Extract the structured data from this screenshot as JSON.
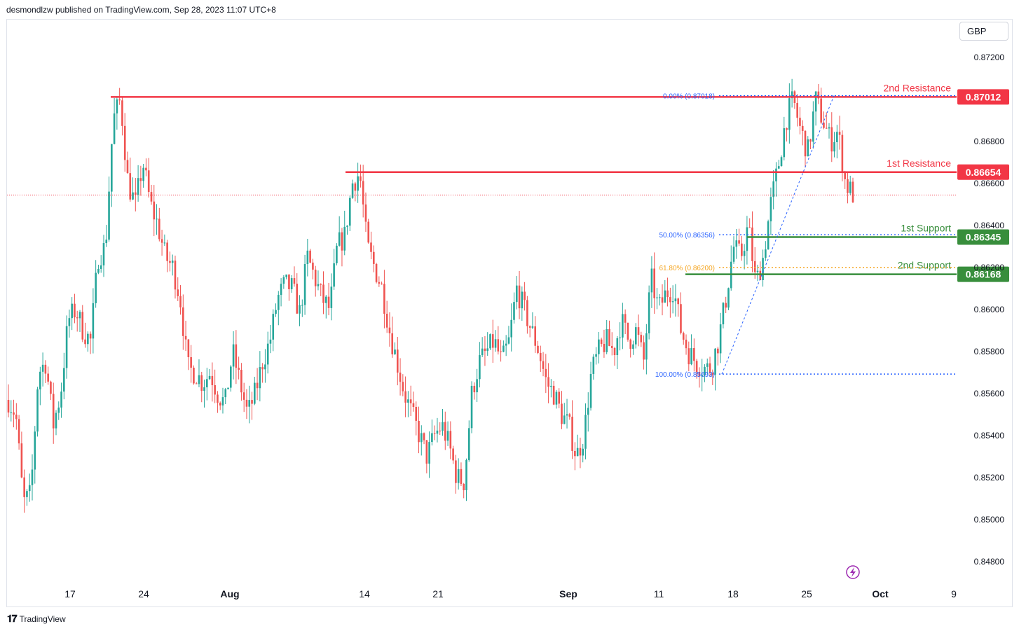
{
  "header": {
    "publisher_line": "desmondlzw published on TradingView.com, Sep 28, 2023 11:07 UTC+8"
  },
  "currency": "GBP",
  "footer": {
    "brand": "TradingView"
  },
  "colors": {
    "up": "#26a69a",
    "down": "#ef5350",
    "resistance": "#f23645",
    "support": "#388e3c",
    "fib": "#2962ff",
    "fib618": "#f5a623",
    "price_line": "#f23645"
  },
  "chart_data": {
    "type": "candlestick",
    "title": "",
    "y_axis": {
      "ticks": [
        0.872,
        0.868,
        0.866,
        0.864,
        0.862,
        0.86,
        0.858,
        0.856,
        0.854,
        0.852,
        0.85,
        0.848
      ],
      "tick_labels": [
        "0.87200",
        "0.86800",
        "0.86600",
        "0.86400",
        "0.86200",
        "0.86000",
        "0.85800",
        "0.85600",
        "0.85400",
        "0.85200",
        "0.85000",
        "0.84800"
      ],
      "range": [
        0.8469,
        0.8738
      ]
    },
    "x_axis": {
      "labels": [
        "17",
        "24",
        "Aug",
        "14",
        "21",
        "Sep",
        "11",
        "18",
        "25",
        "Oct",
        "9"
      ],
      "bold": [
        "Aug",
        "Sep",
        "Oct"
      ]
    },
    "levels": [
      {
        "name": "2nd Resistance",
        "value": 0.87012,
        "label": "0.87012",
        "kind": "resistance"
      },
      {
        "name": "1st Resistance",
        "value": 0.86654,
        "label": "0.86654",
        "kind": "resistance"
      },
      {
        "name": "1st Support",
        "value": 0.86345,
        "label": "0.86345",
        "kind": "support"
      },
      {
        "name": "2nd Support",
        "value": 0.86168,
        "label": "0.86168",
        "kind": "support"
      }
    ],
    "fibonacci": [
      {
        "label": "0.00% (0.87018)",
        "value": 0.87018
      },
      {
        "label": "50.00% (0.86356)",
        "value": 0.86356
      },
      {
        "label": "61.80% (0.86200)",
        "value": 0.862
      },
      {
        "label": "100.00% (0.85693)",
        "value": 0.85693
      }
    ],
    "current_price": 0.86545,
    "price_path": [
      [
        0.8557,
        0.855
      ],
      [
        0.8508,
        0.8512
      ],
      [
        0.857,
        0.8575
      ],
      [
        0.8545,
        0.856
      ],
      [
        0.8595,
        0.86
      ],
      [
        0.859,
        0.8585
      ],
      [
        0.8625,
        0.863
      ],
      [
        0.869,
        0.87
      ],
      [
        0.866,
        0.865
      ],
      [
        0.867,
        0.865
      ],
      [
        0.864,
        0.8625
      ],
      [
        0.862,
        0.8605
      ],
      [
        0.8572,
        0.857
      ],
      [
        0.8565,
        0.857
      ],
      [
        0.856,
        0.8555
      ],
      [
        0.858,
        0.8565
      ],
      [
        0.855,
        0.856
      ],
      [
        0.8575,
        0.8585
      ],
      [
        0.8605,
        0.8612
      ],
      [
        0.861,
        0.8598
      ],
      [
        0.8625,
        0.8615
      ],
      [
        0.8605,
        0.86
      ],
      [
        0.863,
        0.8635
      ],
      [
        0.866,
        0.8665
      ],
      [
        0.863,
        0.862
      ],
      [
        0.861,
        0.859
      ],
      [
        0.8575,
        0.856
      ],
      [
        0.855,
        0.854
      ],
      [
        0.853,
        0.854
      ],
      [
        0.8545,
        0.8535
      ],
      [
        0.852,
        0.8518
      ],
      [
        0.856,
        0.8575
      ],
      [
        0.858,
        0.8585
      ],
      [
        0.8575,
        0.8585
      ],
      [
        0.861,
        0.86
      ],
      [
        0.859,
        0.858
      ],
      [
        0.8565,
        0.856
      ],
      [
        0.855,
        0.8545
      ],
      [
        0.853,
        0.854
      ],
      [
        0.857,
        0.858
      ],
      [
        0.8585,
        0.858
      ],
      [
        0.8595,
        0.8585
      ],
      [
        0.859,
        0.8575
      ],
      [
        0.8615,
        0.86
      ],
      [
        0.8608,
        0.861
      ],
      [
        0.859,
        0.858
      ],
      [
        0.8575,
        0.8572
      ],
      [
        0.8572,
        0.8585
      ],
      [
        0.8605,
        0.863
      ],
      [
        0.8625,
        0.864
      ],
      [
        0.8612,
        0.8625
      ],
      [
        0.865,
        0.8668
      ],
      [
        0.869,
        0.87
      ],
      [
        0.8685,
        0.8675
      ],
      [
        0.87,
        0.869
      ],
      [
        0.868,
        0.8685
      ],
      [
        0.866,
        0.8655
      ]
    ]
  }
}
